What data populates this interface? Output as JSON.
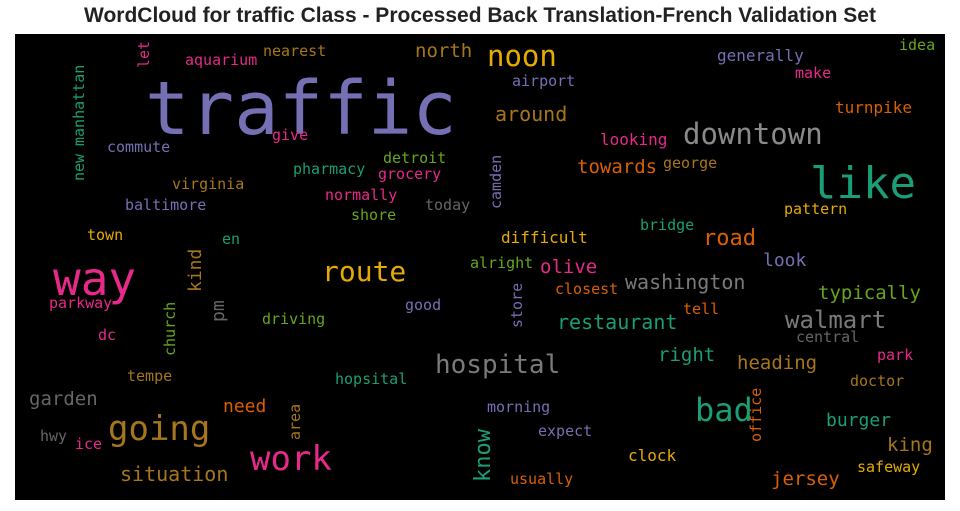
{
  "title": "WordCloud for traffic Class - Processed Back Translation-French Validation Set",
  "chart_data": {
    "type": "wordcloud",
    "words": [
      {
        "text": "traffic",
        "color": "#7570b3"
      },
      {
        "text": "way",
        "color": "#e7298a"
      },
      {
        "text": "like",
        "color": "#1b9e77"
      },
      {
        "text": "downtown",
        "color": "#8a8a8a"
      },
      {
        "text": "noon",
        "color": "#e6ab02"
      },
      {
        "text": "route",
        "color": "#e6ab02"
      },
      {
        "text": "going",
        "color": "#a6761d"
      },
      {
        "text": "work",
        "color": "#e7298a"
      },
      {
        "text": "bad",
        "color": "#1b9e77"
      },
      {
        "text": "hospital",
        "color": "#7a7a7a"
      },
      {
        "text": "walmart",
        "color": "#7a7a7a"
      },
      {
        "text": "road",
        "color": "#d95f02"
      },
      {
        "text": "know",
        "color": "#1b9e77"
      },
      {
        "text": "around",
        "color": "#a6761d"
      },
      {
        "text": "washington",
        "color": "#7a7a7a"
      },
      {
        "text": "restaurant",
        "color": "#1b9e77"
      },
      {
        "text": "typically",
        "color": "#66a61e"
      },
      {
        "text": "towards",
        "color": "#d95f02"
      },
      {
        "text": "olive",
        "color": "#e7298a"
      },
      {
        "text": "kind",
        "color": "#a6761d"
      },
      {
        "text": "pm",
        "color": "#666666"
      },
      {
        "text": "situation",
        "color": "#a6761d"
      },
      {
        "text": "jersey",
        "color": "#d95f02"
      },
      {
        "text": "king",
        "color": "#a6761d"
      },
      {
        "text": "burger",
        "color": "#1b9e77"
      },
      {
        "text": "heading",
        "color": "#a6761d"
      },
      {
        "text": "right",
        "color": "#1b9e77"
      },
      {
        "text": "need",
        "color": "#d95f02"
      },
      {
        "text": "garden",
        "color": "#666666"
      },
      {
        "text": "look",
        "color": "#7570b3"
      },
      {
        "text": "north",
        "color": "#a6761d"
      },
      {
        "text": "airport",
        "color": "#7570b3"
      },
      {
        "text": "generally",
        "color": "#7570b3"
      },
      {
        "text": "make",
        "color": "#e7298a"
      },
      {
        "text": "idea",
        "color": "#66a61e"
      },
      {
        "text": "turnpike",
        "color": "#d95f02"
      },
      {
        "text": "looking",
        "color": "#e7298a"
      },
      {
        "text": "george",
        "color": "#a6761d"
      },
      {
        "text": "pattern",
        "color": "#e6ab02"
      },
      {
        "text": "bridge",
        "color": "#1b9e77"
      },
      {
        "text": "camden",
        "color": "#7570b3"
      },
      {
        "text": "difficult",
        "color": "#e6ab02"
      },
      {
        "text": "closest",
        "color": "#d95f02"
      },
      {
        "text": "alright",
        "color": "#66a61e"
      },
      {
        "text": "store",
        "color": "#7570b3"
      },
      {
        "text": "tell",
        "color": "#d95f02"
      },
      {
        "text": "central",
        "color": "#666666"
      },
      {
        "text": "park",
        "color": "#e7298a"
      },
      {
        "text": "doctor",
        "color": "#a6761d"
      },
      {
        "text": "office",
        "color": "#d95f02"
      },
      {
        "text": "safeway",
        "color": "#e6ab02"
      },
      {
        "text": "clock",
        "color": "#e6ab02"
      },
      {
        "text": "usually",
        "color": "#d95f02"
      },
      {
        "text": "expect",
        "color": "#7570b3"
      },
      {
        "text": "morning",
        "color": "#7570b3"
      },
      {
        "text": "area",
        "color": "#a6761d"
      },
      {
        "text": "hopsital",
        "color": "#1b9e77"
      },
      {
        "text": "tempe",
        "color": "#a6761d"
      },
      {
        "text": "driving",
        "color": "#66a61e"
      },
      {
        "text": "good",
        "color": "#7570b3"
      },
      {
        "text": "church",
        "color": "#66a61e"
      },
      {
        "text": "dc",
        "color": "#e7298a"
      },
      {
        "text": "parkway",
        "color": "#e7298a"
      },
      {
        "text": "hwy",
        "color": "#666666"
      },
      {
        "text": "ice",
        "color": "#e7298a"
      },
      {
        "text": "town",
        "color": "#e6ab02"
      },
      {
        "text": "en",
        "color": "#1b9e77"
      },
      {
        "text": "baltimore",
        "color": "#7570b3"
      },
      {
        "text": "virginia",
        "color": "#a6761d"
      },
      {
        "text": "commute",
        "color": "#7570b3"
      },
      {
        "text": "give",
        "color": "#e7298a"
      },
      {
        "text": "pharmacy",
        "color": "#1b9e77"
      },
      {
        "text": "detroit",
        "color": "#66a61e"
      },
      {
        "text": "grocery",
        "color": "#e7298a"
      },
      {
        "text": "normally",
        "color": "#e7298a"
      },
      {
        "text": "shore",
        "color": "#66a61e"
      },
      {
        "text": "today",
        "color": "#666666"
      },
      {
        "text": "aquarium",
        "color": "#e7298a"
      },
      {
        "text": "nearest",
        "color": "#a6761d"
      },
      {
        "text": "let",
        "color": "#e7298a"
      },
      {
        "text": "manhattan",
        "color": "#1b9e77"
      },
      {
        "text": "new",
        "color": "#1b9e77"
      }
    ]
  }
}
